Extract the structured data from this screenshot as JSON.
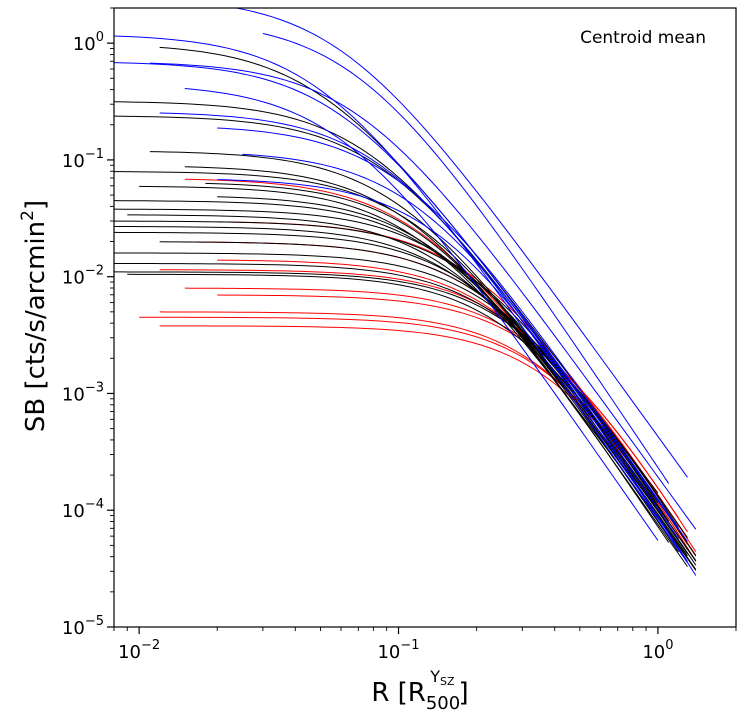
{
  "chart_data": {
    "type": "line",
    "title": "",
    "annotation": "Centroid mean",
    "xlabel": {
      "main": "R [R",
      "sub": "500",
      "sup": "Y",
      "supsub": "SZ",
      "close": "]"
    },
    "ylabel": {
      "main": "SB [cts/s/arcmin",
      "sup": "2",
      "close": "]"
    },
    "xscale": "log",
    "yscale": "log",
    "xlim": [
      0.008,
      2.0
    ],
    "ylim": [
      1e-05,
      2.0
    ],
    "x_ticks": [
      {
        "value": 0.01,
        "base": "10",
        "exp": "−2"
      },
      {
        "value": 0.1,
        "base": "10",
        "exp": "−1"
      },
      {
        "value": 1.0,
        "base": "10",
        "exp": "0"
      }
    ],
    "y_ticks": [
      {
        "value": 1e-05,
        "base": "10",
        "exp": "−5"
      },
      {
        "value": 0.0001,
        "base": "10",
        "exp": "−4"
      },
      {
        "value": 0.001,
        "base": "10",
        "exp": "−3"
      },
      {
        "value": 0.01,
        "base": "10",
        "exp": "−2"
      },
      {
        "value": 0.1,
        "base": "10",
        "exp": "−1"
      },
      {
        "value": 1.0,
        "base": "10",
        "exp": "0"
      }
    ],
    "series_groups": [
      {
        "name": "blue",
        "color": "#0000ff",
        "profiles": [
          {
            "x0": 0.008,
            "x1": 1.3,
            "s0": 1.2,
            "rc": 0.05,
            "beta": 0.7
          },
          {
            "x0": 0.013,
            "x1": 1.3,
            "s0": 2.5,
            "rc": 0.06,
            "beta": 0.68
          },
          {
            "x0": 0.008,
            "x1": 1.2,
            "s0": 0.7,
            "rc": 0.06,
            "beta": 0.68
          },
          {
            "x0": 0.03,
            "x1": 1.1,
            "s0": 1.6,
            "rc": 0.07,
            "beta": 0.72
          },
          {
            "x0": 0.011,
            "x1": 1.4,
            "s0": 0.7,
            "rc": 0.07,
            "beta": 0.68
          },
          {
            "x0": 0.015,
            "x1": 1.0,
            "s0": 0.45,
            "rc": 0.06,
            "beta": 0.7
          },
          {
            "x0": 0.012,
            "x1": 1.3,
            "s0": 0.26,
            "rc": 0.09,
            "beta": 0.72
          },
          {
            "x0": 0.02,
            "x1": 1.3,
            "s0": 0.2,
            "rc": 0.1,
            "beta": 0.7
          },
          {
            "x0": 0.025,
            "x1": 1.2,
            "s0": 0.12,
            "rc": 0.12,
            "beta": 0.72
          },
          {
            "x0": 0.02,
            "x1": 1.4,
            "s0": 0.07,
            "rc": 0.15,
            "beta": 0.75
          }
        ]
      },
      {
        "name": "black",
        "color": "#000000",
        "profiles": [
          {
            "x0": 0.012,
            "x1": 1.0,
            "s0": 1.0,
            "rc": 0.05,
            "beta": 0.66
          },
          {
            "x0": 0.008,
            "x1": 1.3,
            "s0": 0.32,
            "rc": 0.08,
            "beta": 0.7
          },
          {
            "x0": 0.008,
            "x1": 1.4,
            "s0": 0.24,
            "rc": 0.09,
            "beta": 0.7
          },
          {
            "x0": 0.011,
            "x1": 1.2,
            "s0": 0.12,
            "rc": 0.1,
            "beta": 0.68
          },
          {
            "x0": 0.008,
            "x1": 1.4,
            "s0": 0.08,
            "rc": 0.12,
            "beta": 0.7
          },
          {
            "x0": 0.01,
            "x1": 1.3,
            "s0": 0.06,
            "rc": 0.12,
            "beta": 0.68
          },
          {
            "x0": 0.008,
            "x1": 1.2,
            "s0": 0.045,
            "rc": 0.15,
            "beta": 0.72
          },
          {
            "x0": 0.008,
            "x1": 1.4,
            "s0": 0.038,
            "rc": 0.17,
            "beta": 0.72
          },
          {
            "x0": 0.009,
            "x1": 1.3,
            "s0": 0.034,
            "rc": 0.16,
            "beta": 0.7
          },
          {
            "x0": 0.008,
            "x1": 1.1,
            "s0": 0.03,
            "rc": 0.2,
            "beta": 0.74
          },
          {
            "x0": 0.008,
            "x1": 1.4,
            "s0": 0.027,
            "rc": 0.18,
            "beta": 0.7
          },
          {
            "x0": 0.008,
            "x1": 1.3,
            "s0": 0.024,
            "rc": 0.2,
            "beta": 0.72
          },
          {
            "x0": 0.012,
            "x1": 1.2,
            "s0": 0.02,
            "rc": 0.22,
            "beta": 0.72
          },
          {
            "x0": 0.008,
            "x1": 1.4,
            "s0": 0.016,
            "rc": 0.25,
            "beta": 0.74
          },
          {
            "x0": 0.008,
            "x1": 1.3,
            "s0": 0.013,
            "rc": 0.26,
            "beta": 0.72
          },
          {
            "x0": 0.008,
            "x1": 1.2,
            "s0": 0.011,
            "rc": 0.3,
            "beta": 0.76
          },
          {
            "x0": 0.009,
            "x1": 1.0,
            "s0": 0.0105,
            "rc": 0.28,
            "beta": 0.74
          },
          {
            "x0": 0.015,
            "x1": 1.3,
            "s0": 0.09,
            "rc": 0.11,
            "beta": 0.7
          },
          {
            "x0": 0.02,
            "x1": 1.4,
            "s0": 0.05,
            "rc": 0.14,
            "beta": 0.7
          },
          {
            "x0": 0.018,
            "x1": 1.1,
            "s0": 0.065,
            "rc": 0.13,
            "beta": 0.72
          }
        ]
      },
      {
        "name": "red",
        "color": "#ff0000",
        "profiles": [
          {
            "x0": 0.015,
            "x1": 1.2,
            "s0": 0.07,
            "rc": 0.12,
            "beta": 0.68
          },
          {
            "x0": 0.02,
            "x1": 1.3,
            "s0": 0.03,
            "rc": 0.2,
            "beta": 0.72
          },
          {
            "x0": 0.015,
            "x1": 1.4,
            "s0": 0.02,
            "rc": 0.22,
            "beta": 0.72
          },
          {
            "x0": 0.02,
            "x1": 1.3,
            "s0": 0.014,
            "rc": 0.26,
            "beta": 0.74
          },
          {
            "x0": 0.012,
            "x1": 1.4,
            "s0": 0.0115,
            "rc": 0.3,
            "beta": 0.76
          },
          {
            "x0": 0.015,
            "x1": 1.2,
            "s0": 0.008,
            "rc": 0.35,
            "beta": 0.76
          },
          {
            "x0": 0.02,
            "x1": 1.3,
            "s0": 0.007,
            "rc": 0.38,
            "beta": 0.78
          },
          {
            "x0": 0.012,
            "x1": 1.2,
            "s0": 0.005,
            "rc": 0.4,
            "beta": 0.8
          },
          {
            "x0": 0.01,
            "x1": 1.3,
            "s0": 0.0045,
            "rc": 0.42,
            "beta": 0.8
          },
          {
            "x0": 0.012,
            "x1": 1.4,
            "s0": 0.0038,
            "rc": 0.45,
            "beta": 0.82
          }
        ]
      }
    ]
  }
}
